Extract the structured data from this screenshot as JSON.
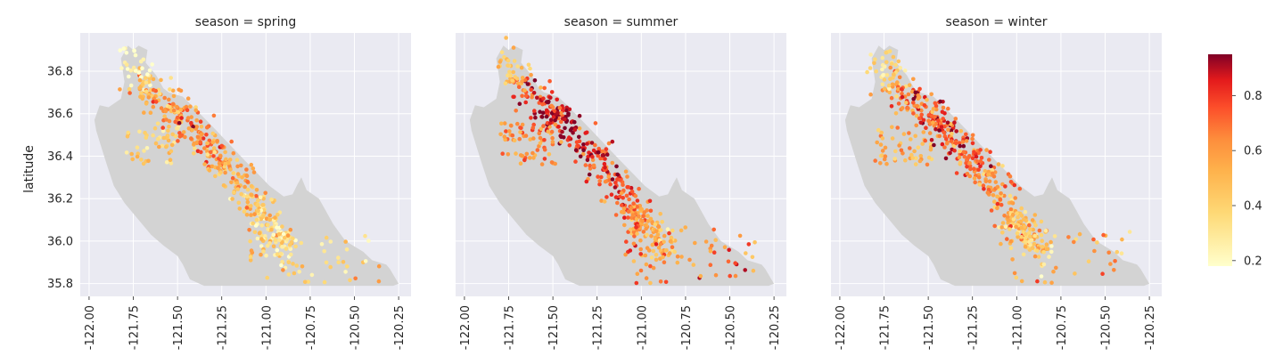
{
  "chart_data": {
    "type": "scatter",
    "title": "",
    "xlabel": "",
    "ylabel": "latitude",
    "xlim": [
      -122.05,
      -120.18
    ],
    "ylim": [
      35.74,
      36.98
    ],
    "xticks": [
      -122.0,
      -121.75,
      -121.5,
      -121.25,
      -121.0,
      -120.75,
      -120.5,
      -120.25
    ],
    "xtick_labels": [
      "-122.00",
      "-121.75",
      "-121.50",
      "-121.25",
      "-121.00",
      "-120.75",
      "-120.50",
      "-120.25"
    ],
    "yticks": [
      35.8,
      36.0,
      36.2,
      36.4,
      36.6,
      36.8
    ],
    "ytick_labels": [
      "35.8",
      "36.0",
      "36.2",
      "36.4",
      "36.6",
      "36.8"
    ],
    "grid": true,
    "background_color": "#eaeaf2",
    "region_color": "#d3d3d3",
    "colormap": "YlOrRd",
    "colorbar": {
      "vmin": 0.18,
      "vmax": 0.95,
      "ticks": [
        0.2,
        0.4,
        0.6,
        0.8
      ],
      "tick_labels": [
        "0.2",
        "0.4",
        "0.6",
        "0.8"
      ]
    },
    "region_outline": [
      [
        -121.97,
        36.57
      ],
      [
        -121.94,
        36.64
      ],
      [
        -121.89,
        36.63
      ],
      [
        -121.82,
        36.67
      ],
      [
        -121.8,
        36.75
      ],
      [
        -121.82,
        36.86
      ],
      [
        -121.78,
        36.92
      ],
      [
        -121.75,
        36.9
      ],
      [
        -121.72,
        36.92
      ],
      [
        -121.67,
        36.9
      ],
      [
        -121.68,
        36.84
      ],
      [
        -121.62,
        36.78
      ],
      [
        -121.58,
        36.72
      ],
      [
        -121.55,
        36.7
      ],
      [
        -121.47,
        36.68
      ],
      [
        -121.42,
        36.64
      ],
      [
        -121.35,
        36.58
      ],
      [
        -121.28,
        36.52
      ],
      [
        -121.2,
        36.45
      ],
      [
        -121.12,
        36.38
      ],
      [
        -121.05,
        36.32
      ],
      [
        -120.98,
        36.26
      ],
      [
        -120.9,
        36.21
      ],
      [
        -120.85,
        36.22
      ],
      [
        -120.82,
        36.27
      ],
      [
        -120.8,
        36.3
      ],
      [
        -120.77,
        36.24
      ],
      [
        -120.7,
        36.2
      ],
      [
        -120.66,
        36.14
      ],
      [
        -120.62,
        36.08
      ],
      [
        -120.55,
        36.0
      ],
      [
        -120.45,
        35.95
      ],
      [
        -120.4,
        35.91
      ],
      [
        -120.32,
        35.89
      ],
      [
        -120.3,
        35.87
      ],
      [
        -120.25,
        35.8
      ],
      [
        -120.28,
        35.79
      ],
      [
        -121.35,
        35.79
      ],
      [
        -121.43,
        35.82
      ],
      [
        -121.47,
        35.89
      ],
      [
        -121.5,
        35.93
      ],
      [
        -121.58,
        35.98
      ],
      [
        -121.65,
        36.03
      ],
      [
        -121.72,
        36.1
      ],
      [
        -121.8,
        36.18
      ],
      [
        -121.86,
        36.26
      ],
      [
        -121.9,
        36.36
      ],
      [
        -121.93,
        36.44
      ],
      [
        -121.96,
        36.52
      ]
    ],
    "panels": [
      {
        "title": "season = spring",
        "seed": 11,
        "color_shift": -0.12
      },
      {
        "title": "season = summer",
        "seed": 29,
        "color_shift": 0.12
      },
      {
        "title": "season = winter",
        "seed": 47,
        "color_shift": 0.0
      }
    ]
  }
}
